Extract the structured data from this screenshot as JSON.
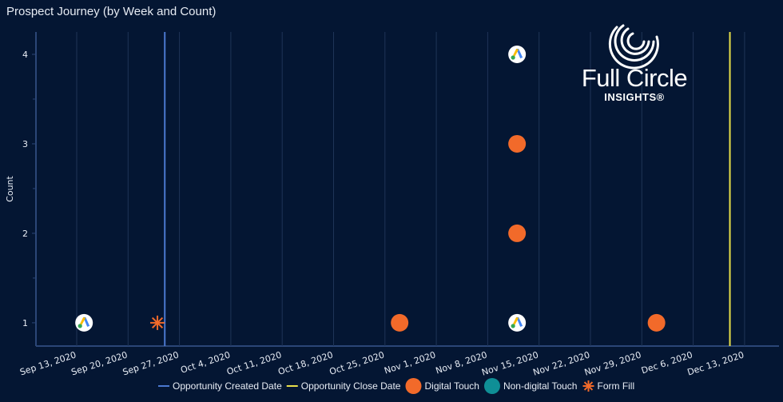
{
  "chart_data": {
    "type": "scatter",
    "title": "Prospect Journey (by Week and Count)",
    "xlabel": "",
    "ylabel": "Count",
    "x_ticks": [
      "Sep 13, 2020",
      "Sep 20, 2020",
      "Sep 27, 2020",
      "Oct 4, 2020",
      "Oct 11, 2020",
      "Oct 18, 2020",
      "Oct 25, 2020",
      "Nov 1, 2020",
      "Nov 8, 2020",
      "Nov 15, 2020",
      "Nov 22, 2020",
      "Nov 29, 2020",
      "Dec 6, 2020",
      "Dec 13, 2020"
    ],
    "y_ticks": [
      "1",
      "2",
      "3",
      "4"
    ],
    "ylim": [
      0.74,
      4.25
    ],
    "grid": "vertical",
    "legend_position": "bottom",
    "colors": {
      "background": "#041633",
      "grid": "#1f3457",
      "created": "#4a78d0",
      "close": "#e8e04a",
      "digital": "#f26a2a",
      "nondigital": "#0f8f96",
      "formfill": "#f26a2a"
    },
    "reference_lines": [
      {
        "name": "Opportunity Created Date",
        "date": "2020-09-25",
        "color": "#4a78d0"
      },
      {
        "name": "Opportunity Close Date",
        "date": "2020-12-11",
        "color": "#e8e04a"
      }
    ],
    "points": [
      {
        "date": "2020-09-14",
        "count": 1,
        "type": "google-ads"
      },
      {
        "date": "2020-09-24",
        "count": 1,
        "type": "form-fill"
      },
      {
        "date": "2020-10-27",
        "count": 1,
        "type": "digital"
      },
      {
        "date": "2020-11-12",
        "count": 1,
        "type": "google-ads"
      },
      {
        "date": "2020-11-12",
        "count": 2,
        "type": "digital"
      },
      {
        "date": "2020-11-12",
        "count": 3,
        "type": "digital"
      },
      {
        "date": "2020-11-12",
        "count": 4,
        "type": "google-ads"
      },
      {
        "date": "2020-12-01",
        "count": 1,
        "type": "digital"
      }
    ],
    "legend": [
      {
        "label": "Opportunity Created Date",
        "kind": "line",
        "color": "#4a78d0"
      },
      {
        "label": "Opportunity Close Date",
        "kind": "line",
        "color": "#e8e04a"
      },
      {
        "label": "Digital Touch",
        "kind": "circle",
        "color": "#f26a2a"
      },
      {
        "label": "Non-digital Touch",
        "kind": "circle",
        "color": "#0f8f96"
      },
      {
        "label": "Form Fill",
        "kind": "asterisk",
        "color": "#f26a2a"
      }
    ]
  },
  "logo": {
    "line1": "Full Circle",
    "line2": "INSIGHTS®"
  }
}
